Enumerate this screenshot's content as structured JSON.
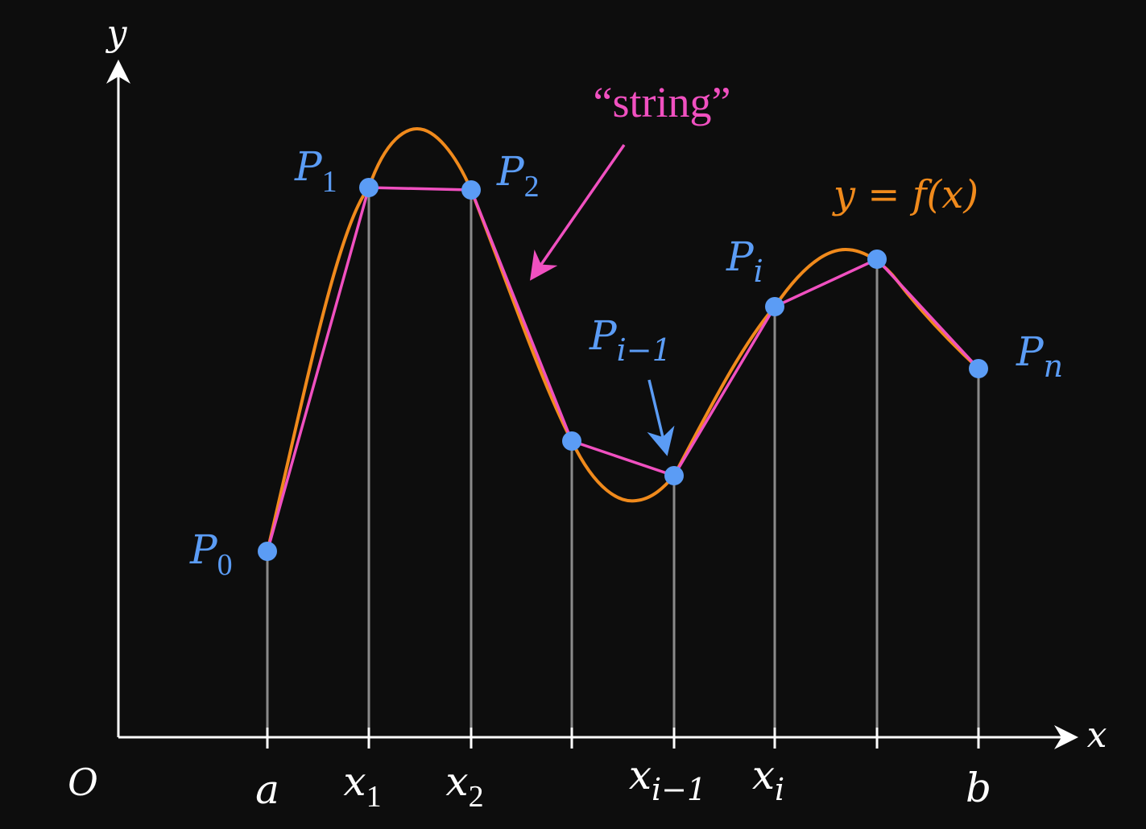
{
  "colors": {
    "background": "#0d0d0d",
    "axis": "#ffffff",
    "guide": "#8a8a8a",
    "point": "#5b9cf5",
    "curve": "#f08a1c",
    "string": "#f050c0"
  },
  "axes": {
    "y_label": "y",
    "x_label": "x",
    "origin_label": "O"
  },
  "x_ticks": [
    {
      "main": "a",
      "sub": ""
    },
    {
      "main": "x",
      "sub": "1"
    },
    {
      "main": "x",
      "sub": "2"
    },
    {
      "main": "",
      "sub": ""
    },
    {
      "main": "x",
      "sub": "i−1"
    },
    {
      "main": "x",
      "sub": "i"
    },
    {
      "main": "",
      "sub": ""
    },
    {
      "main": "b",
      "sub": ""
    }
  ],
  "points": [
    {
      "main": "P",
      "sub": "0"
    },
    {
      "main": "P",
      "sub": "1"
    },
    {
      "main": "P",
      "sub": "2"
    },
    {
      "main": "",
      "sub": ""
    },
    {
      "main": "P",
      "sub": "i−1"
    },
    {
      "main": "P",
      "sub": "i"
    },
    {
      "main": "",
      "sub": ""
    },
    {
      "main": "P",
      "sub": "n"
    }
  ],
  "annotations": {
    "string_label": "“string”",
    "curve_label": "y = f(x)"
  }
}
